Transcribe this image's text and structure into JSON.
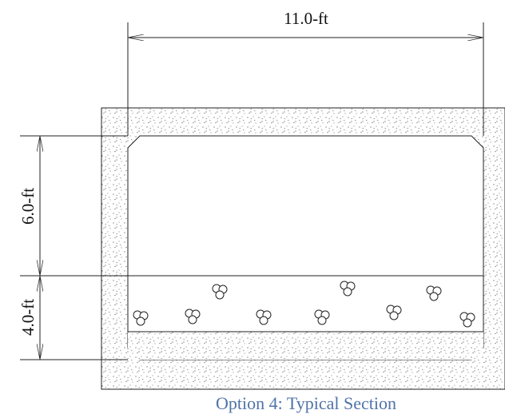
{
  "dimensions": {
    "width": "11.0-ft",
    "upper_height": "6.0-ft",
    "lower_height": "4.0-ft"
  },
  "caption": "Option 4: Typical Section"
}
